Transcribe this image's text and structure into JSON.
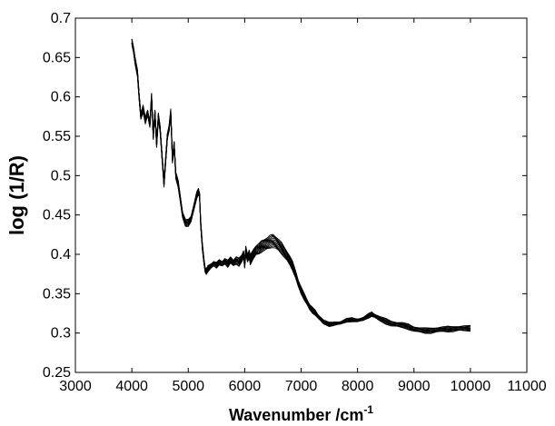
{
  "chart_data": {
    "type": "line",
    "title": "",
    "xlabel": "Wavenumber /cm",
    "xlabel_superscript": "-1",
    "ylabel": "log (1/R)",
    "xlim": [
      3000,
      11000
    ],
    "ylim": [
      0.25,
      0.7
    ],
    "x_ticks": [
      3000,
      4000,
      5000,
      6000,
      7000,
      8000,
      9000,
      10000,
      11000
    ],
    "y_ticks": [
      0.25,
      0.3,
      0.35,
      0.4,
      0.45,
      0.5,
      0.55,
      0.6,
      0.65,
      0.7
    ],
    "x_tick_labels": [
      "3000",
      "4000",
      "5000",
      "6000",
      "7000",
      "8000",
      "9000",
      "10000",
      "11000"
    ],
    "y_tick_labels": [
      "0.25",
      "0.3",
      "0.35",
      "0.4",
      "0.45",
      "0.5",
      "0.55",
      "0.6",
      "0.65",
      "0.7"
    ],
    "grid": false,
    "legend": "none",
    "series_color": "#000000",
    "series_count": 12,
    "band_spread": [
      [
        4000,
        0.004
      ],
      [
        4500,
        0.004
      ],
      [
        5000,
        0.004
      ],
      [
        5500,
        0.003
      ],
      [
        6000,
        0.005
      ],
      [
        6500,
        0.008
      ],
      [
        7000,
        0.004
      ],
      [
        7500,
        0.002
      ],
      [
        8000,
        0.002
      ],
      [
        8500,
        0.003
      ],
      [
        9000,
        0.003
      ],
      [
        10000,
        0.003
      ]
    ],
    "series_mean": {
      "x": [
        4000,
        4030,
        4060,
        4100,
        4130,
        4160,
        4200,
        4240,
        4280,
        4320,
        4350,
        4380,
        4410,
        4440,
        4470,
        4500,
        4540,
        4570,
        4600,
        4630,
        4660,
        4690,
        4720,
        4750,
        4780,
        4820,
        4860,
        4900,
        4950,
        5000,
        5050,
        5100,
        5150,
        5180,
        5200,
        5220,
        5250,
        5280,
        5300,
        5320,
        5350,
        5400,
        5450,
        5500,
        5550,
        5600,
        5650,
        5700,
        5750,
        5800,
        5850,
        5900,
        5950,
        5980,
        6000,
        6020,
        6050,
        6080,
        6100,
        6150,
        6200,
        6250,
        6300,
        6350,
        6400,
        6450,
        6500,
        6550,
        6600,
        6650,
        6700,
        6750,
        6800,
        6850,
        6900,
        6950,
        7000,
        7050,
        7100,
        7150,
        7200,
        7250,
        7300,
        7400,
        7500,
        7600,
        7700,
        7800,
        7900,
        8000,
        8100,
        8200,
        8250,
        8300,
        8400,
        8500,
        8600,
        8700,
        8800,
        8900,
        9000,
        9100,
        9200,
        9300,
        9400,
        9500,
        9600,
        9700,
        9800,
        9900,
        10000
      ],
      "y": [
        0.67,
        0.66,
        0.645,
        0.63,
        0.6,
        0.575,
        0.585,
        0.57,
        0.58,
        0.565,
        0.6,
        0.55,
        0.58,
        0.54,
        0.575,
        0.56,
        0.52,
        0.49,
        0.52,
        0.55,
        0.56,
        0.58,
        0.52,
        0.54,
        0.5,
        0.49,
        0.47,
        0.45,
        0.44,
        0.44,
        0.445,
        0.46,
        0.475,
        0.48,
        0.475,
        0.44,
        0.41,
        0.39,
        0.38,
        0.378,
        0.382,
        0.385,
        0.388,
        0.386,
        0.39,
        0.388,
        0.391,
        0.388,
        0.393,
        0.389,
        0.392,
        0.39,
        0.395,
        0.4,
        0.388,
        0.405,
        0.395,
        0.4,
        0.393,
        0.4,
        0.405,
        0.407,
        0.41,
        0.412,
        0.414,
        0.416,
        0.417,
        0.415,
        0.412,
        0.408,
        0.403,
        0.398,
        0.392,
        0.385,
        0.375,
        0.363,
        0.354,
        0.347,
        0.34,
        0.333,
        0.329,
        0.326,
        0.321,
        0.314,
        0.311,
        0.312,
        0.313,
        0.316,
        0.317,
        0.316,
        0.318,
        0.322,
        0.324,
        0.322,
        0.318,
        0.315,
        0.312,
        0.311,
        0.31,
        0.308,
        0.305,
        0.304,
        0.303,
        0.303,
        0.304,
        0.305,
        0.305,
        0.305,
        0.306,
        0.306,
        0.306
      ]
    }
  }
}
